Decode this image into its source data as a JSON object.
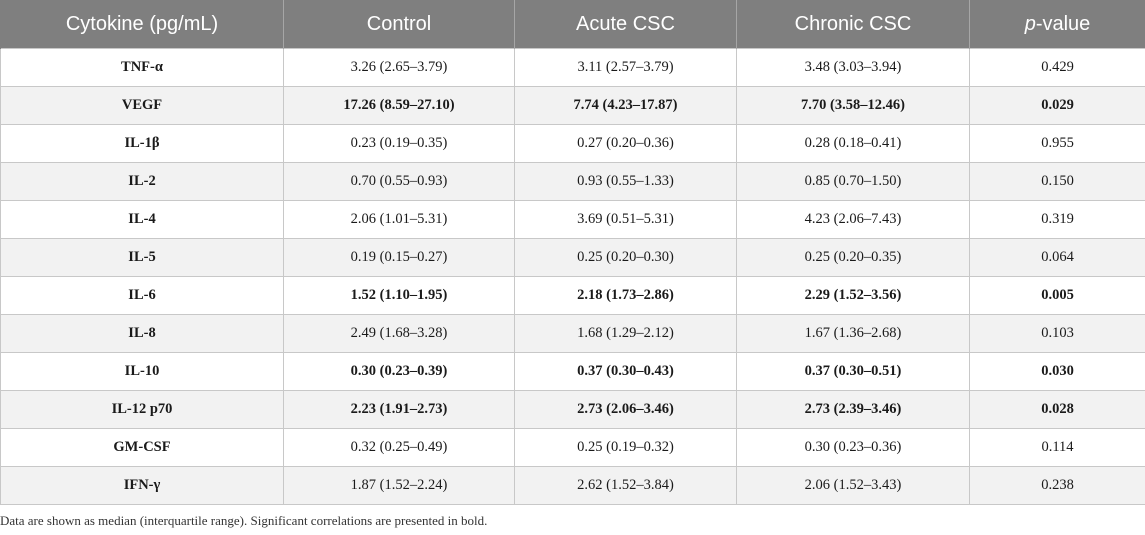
{
  "table": {
    "headers": {
      "cytokine": "Cytokine (pg/mL)",
      "control": "Control",
      "acute": "Acute CSC",
      "chronic": "Chronic CSC",
      "pvalue_italic": "p",
      "pvalue_rest": "-value"
    },
    "rows": [
      {
        "cytokine": "TNF-α",
        "control": "3.26 (2.65–3.79)",
        "acute": "3.11 (2.57–3.79)",
        "chronic": "3.48 (3.03–3.94)",
        "p": "0.429",
        "significant": false
      },
      {
        "cytokine": "VEGF",
        "control": "17.26 (8.59–27.10)",
        "acute": "7.74 (4.23–17.87)",
        "chronic": "7.70 (3.58–12.46)",
        "p": "0.029",
        "significant": true
      },
      {
        "cytokine": "IL-1β",
        "control": "0.23 (0.19–0.35)",
        "acute": "0.27 (0.20–0.36)",
        "chronic": "0.28 (0.18–0.41)",
        "p": "0.955",
        "significant": false
      },
      {
        "cytokine": "IL-2",
        "control": "0.70 (0.55–0.93)",
        "acute": "0.93 (0.55–1.33)",
        "chronic": "0.85 (0.70–1.50)",
        "p": "0.150",
        "significant": false
      },
      {
        "cytokine": "IL-4",
        "control": "2.06 (1.01–5.31)",
        "acute": "3.69 (0.51–5.31)",
        "chronic": "4.23 (2.06–7.43)",
        "p": "0.319",
        "significant": false
      },
      {
        "cytokine": "IL-5",
        "control": "0.19 (0.15–0.27)",
        "acute": "0.25 (0.20–0.30)",
        "chronic": "0.25 (0.20–0.35)",
        "p": "0.064",
        "significant": false
      },
      {
        "cytokine": "IL-6",
        "control": "1.52 (1.10–1.95)",
        "acute": "2.18 (1.73–2.86)",
        "chronic": "2.29 (1.52–3.56)",
        "p": "0.005",
        "significant": true
      },
      {
        "cytokine": "IL-8",
        "control": "2.49 (1.68–3.28)",
        "acute": "1.68 (1.29–2.12)",
        "chronic": "1.67 (1.36–2.68)",
        "p": "0.103",
        "significant": false
      },
      {
        "cytokine": "IL-10",
        "control": "0.30 (0.23–0.39)",
        "acute": "0.37 (0.30–0.43)",
        "chronic": "0.37 (0.30–0.51)",
        "p": "0.030",
        "significant": true
      },
      {
        "cytokine": "IL-12 p70",
        "control": "2.23 (1.91–2.73)",
        "acute": "2.73 (2.06–3.46)",
        "chronic": "2.73 (2.39–3.46)",
        "p": "0.028",
        "significant": true
      },
      {
        "cytokine": "GM-CSF",
        "control": "0.32 (0.25–0.49)",
        "acute": "0.25 (0.19–0.32)",
        "chronic": "0.30 (0.23–0.36)",
        "p": "0.114",
        "significant": false
      },
      {
        "cytokine": "IFN-γ",
        "control": "1.87 (1.52–2.24)",
        "acute": "2.62 (1.52–3.84)",
        "chronic": "2.06 (1.52–3.43)",
        "p": "0.238",
        "significant": false
      }
    ]
  },
  "footnote": "Data are shown as median (interquartile range). Significant correlations are presented in bold."
}
